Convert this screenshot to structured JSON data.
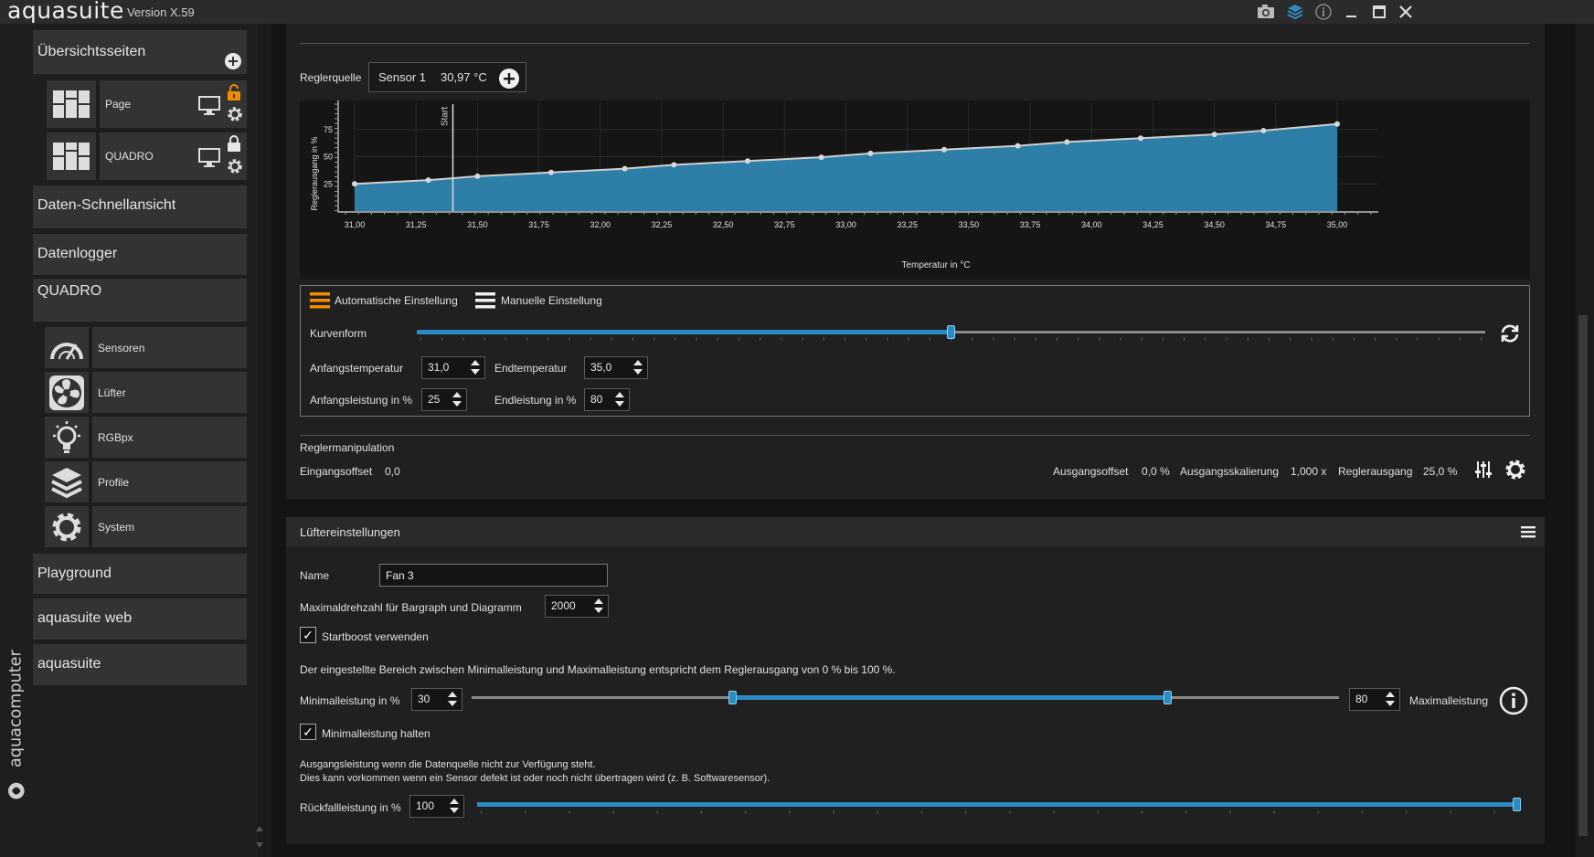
{
  "app": {
    "name": "aquasuite",
    "version": "Version X.59",
    "brand": "aquacomputer"
  },
  "titlebar": {
    "icons": [
      "camera-icon",
      "layers-icon",
      "info-icon",
      "minimize-icon",
      "maximize-icon",
      "close-icon"
    ]
  },
  "sidebar": {
    "overview_label": "Übersichtsseiten",
    "pages": [
      {
        "label": "Page",
        "lock": "unlocked"
      },
      {
        "label": "QUADRO",
        "lock": "locked"
      }
    ],
    "quick_view": "Daten-Schnellansicht",
    "datalogger": "Datenlogger",
    "device": "QUADRO",
    "device_items": [
      {
        "label": "Sensoren",
        "icon": "gauge-icon"
      },
      {
        "label": "Lüfter",
        "icon": "fan-icon"
      },
      {
        "label": "RGBpx",
        "icon": "bulb-icon"
      },
      {
        "label": "Profile",
        "icon": "layers-icon"
      },
      {
        "label": "System",
        "icon": "gear-icon"
      }
    ],
    "bottom_items": [
      "Playground",
      "aquasuite web",
      "aquasuite"
    ]
  },
  "controller": {
    "source_label": "Reglerquelle",
    "source_name": "Sensor 1",
    "source_value": "30,97 °C",
    "mode_auto": "Automatische Einstellung",
    "mode_manual": "Manuelle Einstellung",
    "curve_label": "Kurvenform",
    "curve_value": 0.5,
    "start_temp_label": "Anfangstemperatur",
    "start_temp": "31,0",
    "end_temp_label": "Endtemperatur",
    "end_temp": "35,0",
    "start_power_label": "Anfangsleistung in %",
    "start_power": "25",
    "end_power_label": "Endleistung in %",
    "end_power": "80",
    "manip_title": "Reglermanipulation",
    "input_offset_label": "Eingangsoffset",
    "input_offset": "0,0",
    "output_offset_label": "Ausgangsoffset",
    "output_offset": "0,0 %",
    "output_scale_label": "Ausgangsskalierung",
    "output_scale": "1,000 x",
    "output_label": "Reglerausgang",
    "output_value": "25,0 %"
  },
  "chart_data": {
    "type": "area",
    "xlabel": "Temperatur in °C",
    "ylabel": "Reglerausgang in %",
    "xlim": [
      31.0,
      35.0
    ],
    "ylim": [
      0,
      100
    ],
    "x_ticks": [
      "31,00",
      "31,25",
      "31,50",
      "31,75",
      "32,00",
      "32,25",
      "32,50",
      "32,75",
      "33,00",
      "33,25",
      "33,50",
      "33,75",
      "34,00",
      "34,25",
      "34,50",
      "34,75",
      "35,00"
    ],
    "y_ticks": [
      "25",
      "50",
      "75"
    ],
    "marker_label": "Start",
    "marker_x": 31.4,
    "x": [
      31.0,
      31.3,
      31.5,
      31.8,
      32.1,
      32.3,
      32.6,
      32.9,
      33.1,
      33.4,
      33.7,
      33.9,
      34.2,
      34.5,
      34.7,
      35.0
    ],
    "values": [
      25,
      28.5,
      32,
      35.5,
      39,
      42.5,
      46,
      49.5,
      53,
      56.5,
      60,
      63.5,
      67,
      70.5,
      74,
      80
    ],
    "fill_color": "#2e7fa8",
    "line_color": "#cfcfcf"
  },
  "fan_settings": {
    "title": "Lüftereinstellungen",
    "name_label": "Name",
    "name_value": "Fan 3",
    "max_rpm_label": "Maximaldrehzahl für Bargraph und Diagramm",
    "max_rpm": "2000",
    "startboost_label": "Startboost verwenden",
    "startboost_checked": true,
    "range_info": "Der eingestellte Bereich zwischen Minimalleistung und Maximalleistung entspricht dem Reglerausgang von 0 % bis 100 %.",
    "min_label": "Minimalleistung in %",
    "min_value": "30",
    "max_value": "80",
    "max_label": "Maximalleistung",
    "hold_min_label": "Minimalleistung halten",
    "hold_min_checked": true,
    "fallback_info_1": "Ausgangsleistung wenn die Datenquelle nicht zur Verfügung steht.",
    "fallback_info_2": "Dies kann vorkommen wenn ein Sensor defekt ist oder noch nicht übertragen wird (z. B. Softwaresensor).",
    "fallback_label": "Rückfallleistung in %",
    "fallback_value": "100"
  },
  "colors": {
    "accent": "#2b8cc4",
    "orange": "#f08c00",
    "panel": "#202020",
    "sidebar_item": "#333333"
  }
}
